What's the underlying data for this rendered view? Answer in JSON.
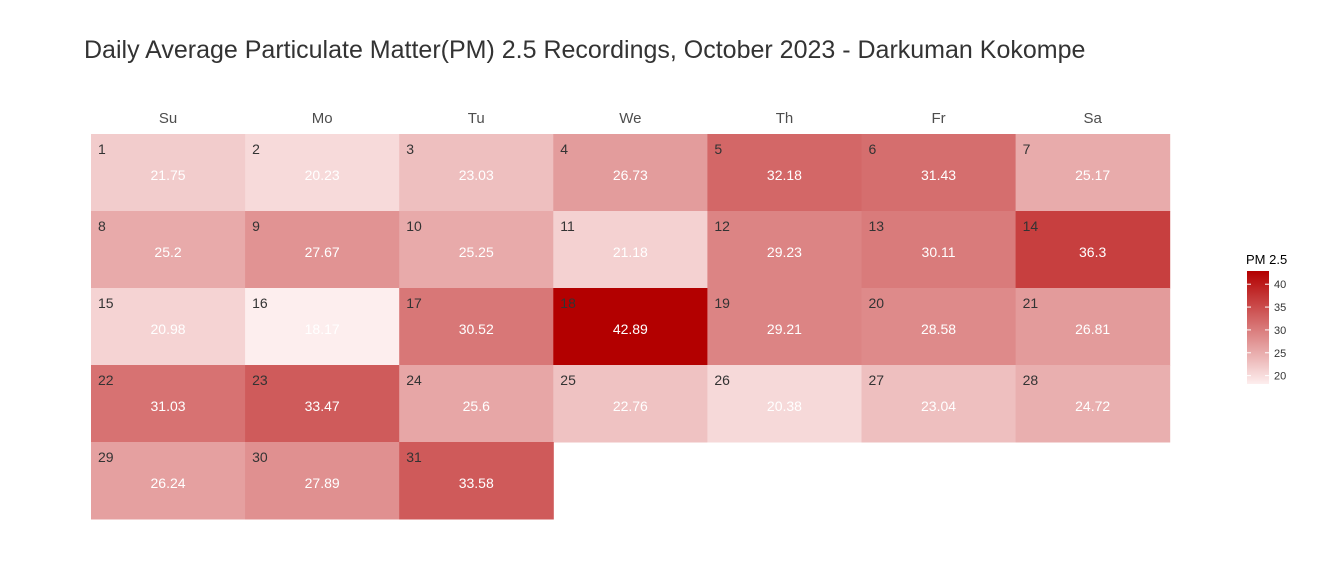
{
  "chart_data": {
    "type": "heatmap",
    "title": "Daily Average Particulate Matter(PM) 2.5 Recordings, October 2023 - Darkuman Kokompe",
    "weekdays": [
      "Su",
      "Mo",
      "Tu",
      "We",
      "Th",
      "Fr",
      "Sa"
    ],
    "first_weekday_index": 0,
    "days": [
      1,
      2,
      3,
      4,
      5,
      6,
      7,
      8,
      9,
      10,
      11,
      12,
      13,
      14,
      15,
      16,
      17,
      18,
      19,
      20,
      21,
      22,
      23,
      24,
      25,
      26,
      27,
      28,
      29,
      30,
      31
    ],
    "day_labels": [
      "1",
      "2",
      "3",
      "4",
      "5",
      "6",
      "7",
      "8",
      "9",
      "10",
      "11",
      "12",
      "13",
      "14",
      "15",
      "16",
      "17",
      "18",
      "19",
      "20",
      "21",
      "22",
      "23",
      "24",
      "25",
      "26",
      "27",
      "28",
      "29",
      "30",
      "31"
    ],
    "value_labels": [
      "21.75",
      "20.23",
      "23.03",
      "26.73",
      "32.18",
      "31.43",
      "25.17",
      "25.2",
      "27.67",
      "25.25",
      "21.18",
      "29.23",
      "30.11",
      "36.3",
      "20.98",
      "18.17",
      "30.52",
      "42.89",
      "29.21",
      "28.58",
      "26.81",
      "31.03",
      "33.47",
      "25.6",
      "22.76",
      "20.38",
      "23.04",
      "24.72",
      "26.24",
      "27.89",
      "33.58"
    ],
    "values": [
      21.75,
      20.23,
      23.03,
      26.73,
      32.18,
      31.43,
      25.17,
      25.2,
      27.67,
      25.25,
      21.18,
      29.23,
      30.11,
      36.3,
      20.98,
      18.17,
      30.52,
      42.89,
      29.21,
      28.58,
      26.81,
      31.03,
      33.47,
      25.6,
      22.76,
      20.38,
      23.04,
      24.72,
      26.24,
      27.89,
      33.58
    ],
    "legend": {
      "title": "PM 2.5",
      "ticks": [
        20,
        25,
        30,
        35,
        40
      ],
      "tick_labels": [
        "20",
        "25",
        "30",
        "35",
        "40"
      ],
      "placement": "right"
    },
    "color_scale": {
      "low": "#fdeeee",
      "high": "#b30000",
      "domain": [
        18.17,
        42.89
      ]
    }
  }
}
